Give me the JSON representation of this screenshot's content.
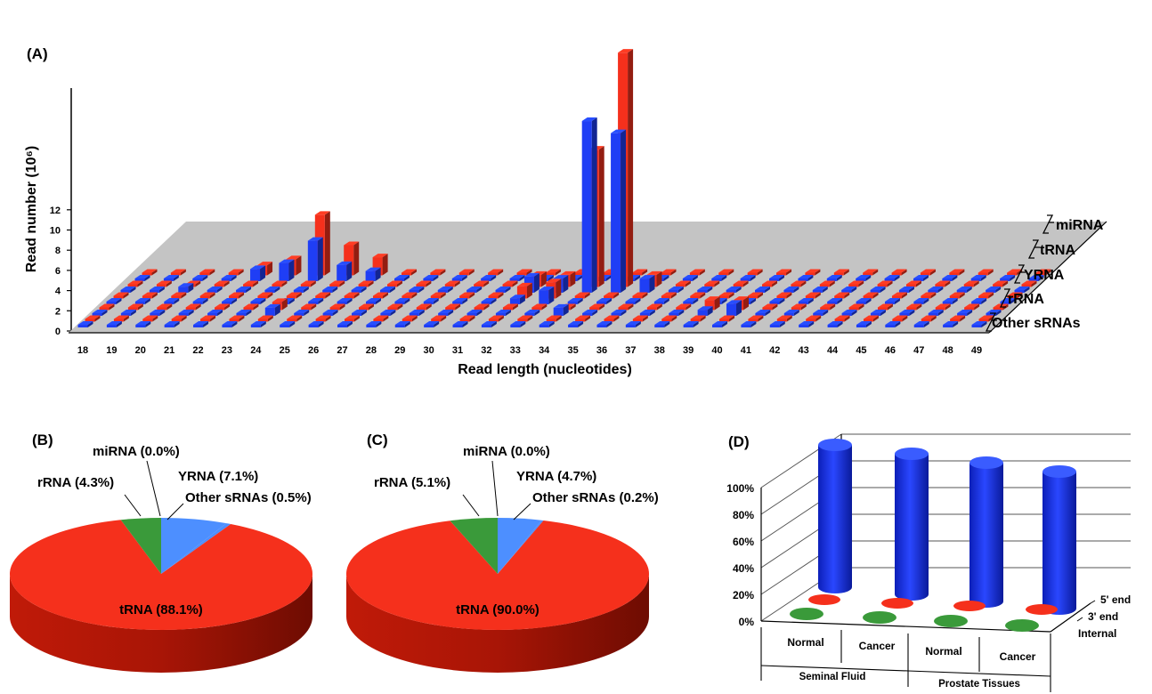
{
  "colors": {
    "blue": "#1f3ef5",
    "red": "#f5301c",
    "green": "#3a9a3a",
    "light_blue": "#4d8fff",
    "floor": "#c4c4c4"
  },
  "chart_data": [
    {
      "panel": "(A)",
      "type": "bar",
      "subtype": "3d-grouped-bar",
      "ylabel": "Read number (10⁶)",
      "xlabel": "Read length (nucleotides)",
      "ylim": [
        0,
        12
      ],
      "yticks": [
        "0",
        "2",
        "4",
        "6",
        "8",
        "10",
        "12"
      ],
      "categories": [
        "18",
        "19",
        "20",
        "21",
        "22",
        "23",
        "24",
        "25",
        "26",
        "27",
        "28",
        "29",
        "30",
        "31",
        "32",
        "33",
        "34",
        "35",
        "36",
        "37",
        "38",
        "39",
        "40",
        "41",
        "42",
        "43",
        "44",
        "45",
        "46",
        "47",
        "48",
        "49"
      ],
      "depth_labels": [
        "miRNA",
        "tRNA",
        "YRNA",
        "rRNA",
        "Other sRNAs"
      ],
      "series_colors": [
        "blue",
        "red"
      ],
      "bars": [
        {
          "depth": "tRNA",
          "x": "20",
          "color": "blue",
          "value": 0.3
        },
        {
          "depth": "miRNA",
          "x": "22",
          "color": "red",
          "value": 0.5
        },
        {
          "depth": "miRNA",
          "x": "22",
          "color": "blue",
          "value": 0.6
        },
        {
          "depth": "miRNA",
          "x": "23",
          "color": "red",
          "value": 0.8
        },
        {
          "depth": "miRNA",
          "x": "23",
          "color": "blue",
          "value": 0.9
        },
        {
          "depth": "miRNA",
          "x": "24",
          "color": "red",
          "value": 3.0
        },
        {
          "depth": "miRNA",
          "x": "24",
          "color": "blue",
          "value": 2.0
        },
        {
          "depth": "miRNA",
          "x": "25",
          "color": "red",
          "value": 1.5
        },
        {
          "depth": "miRNA",
          "x": "25",
          "color": "blue",
          "value": 0.8
        },
        {
          "depth": "miRNA",
          "x": "26",
          "color": "red",
          "value": 0.9
        },
        {
          "depth": "miRNA",
          "x": "26",
          "color": "blue",
          "value": 0.5
        },
        {
          "depth": "tRNA",
          "x": "32",
          "color": "red",
          "value": 0.6
        },
        {
          "depth": "tRNA",
          "x": "32",
          "color": "blue",
          "value": 0.8
        },
        {
          "depth": "tRNA",
          "x": "33",
          "color": "red",
          "value": 0.6
        },
        {
          "depth": "tRNA",
          "x": "33",
          "color": "blue",
          "value": 0.7
        },
        {
          "depth": "tRNA",
          "x": "34",
          "color": "red",
          "value": 6.8
        },
        {
          "depth": "tRNA",
          "x": "34",
          "color": "blue",
          "value": 8.5
        },
        {
          "depth": "tRNA",
          "x": "35",
          "color": "red",
          "value": 11.6
        },
        {
          "depth": "tRNA",
          "x": "35",
          "color": "blue",
          "value": 7.9
        },
        {
          "depth": "tRNA",
          "x": "36",
          "color": "red",
          "value": 0.6
        },
        {
          "depth": "tRNA",
          "x": "36",
          "color": "blue",
          "value": 0.7
        },
        {
          "depth": "YRNA",
          "x": "32",
          "color": "red",
          "value": 0.6
        },
        {
          "depth": "YRNA",
          "x": "32",
          "color": "blue",
          "value": 0.3
        },
        {
          "depth": "YRNA",
          "x": "33",
          "color": "red",
          "value": 0.8
        },
        {
          "depth": "YRNA",
          "x": "33",
          "color": "blue",
          "value": 0.7
        },
        {
          "depth": "rRNA",
          "x": "39",
          "color": "red",
          "value": 0.5
        },
        {
          "depth": "rRNA",
          "x": "39",
          "color": "blue",
          "value": 0.3
        },
        {
          "depth": "rRNA",
          "x": "40",
          "color": "red",
          "value": 0.5
        },
        {
          "depth": "rRNA",
          "x": "40",
          "color": "blue",
          "value": 0.6
        },
        {
          "depth": "rRNA",
          "x": "24",
          "color": "red",
          "value": 0.4
        },
        {
          "depth": "rRNA",
          "x": "24",
          "color": "blue",
          "value": 0.4
        },
        {
          "depth": "rRNA",
          "x": "34",
          "color": "blue",
          "value": 0.4
        }
      ]
    },
    {
      "panel": "(B)",
      "type": "pie",
      "labels": [
        "tRNA",
        "rRNA",
        "miRNA",
        "YRNA",
        "Other sRNAs"
      ],
      "values": [
        88.1,
        4.3,
        0.0,
        7.1,
        0.5
      ],
      "slice_labels": [
        "tRNA (88.1%)",
        "rRNA (4.3%)",
        "miRNA (0.0%)",
        "YRNA (7.1%)",
        "Other sRNAs (0.5%)"
      ],
      "colors": [
        "red",
        "green",
        "light_blue",
        "light_blue",
        "light_blue"
      ]
    },
    {
      "panel": "(C)",
      "type": "pie",
      "labels": [
        "tRNA",
        "rRNA",
        "miRNA",
        "YRNA",
        "Other sRNAs"
      ],
      "values": [
        90.0,
        5.1,
        0.0,
        4.7,
        0.2
      ],
      "slice_labels": [
        "tRNA (90.0%)",
        "rRNA (5.1%)",
        "miRNA (0.0%)",
        "YRNA (4.7%)",
        "Other sRNAs (0.2%)"
      ],
      "colors": [
        "red",
        "green",
        "light_blue",
        "light_blue",
        "light_blue"
      ]
    },
    {
      "panel": "(D)",
      "type": "bar",
      "subtype": "3d-cylinder",
      "yticks": [
        "0%",
        "20%",
        "40%",
        "60%",
        "80%",
        "100%"
      ],
      "ylim": [
        0,
        100
      ],
      "categories": [
        "Normal",
        "Cancer",
        "Normal",
        "Cancer"
      ],
      "groups": [
        "Seminal Fluid",
        "Prostate Tissues"
      ],
      "depth_labels": [
        "5' end",
        "3' end",
        "Internal"
      ],
      "series": [
        {
          "name": "Internal",
          "color": "blue",
          "values": [
            98,
            97,
            96,
            95
          ]
        },
        {
          "name": "5' end",
          "color": "red",
          "values": [
            1,
            1,
            2,
            2
          ]
        },
        {
          "name": "3' end",
          "color": "green",
          "values": [
            1,
            2,
            2,
            3
          ]
        }
      ]
    }
  ]
}
